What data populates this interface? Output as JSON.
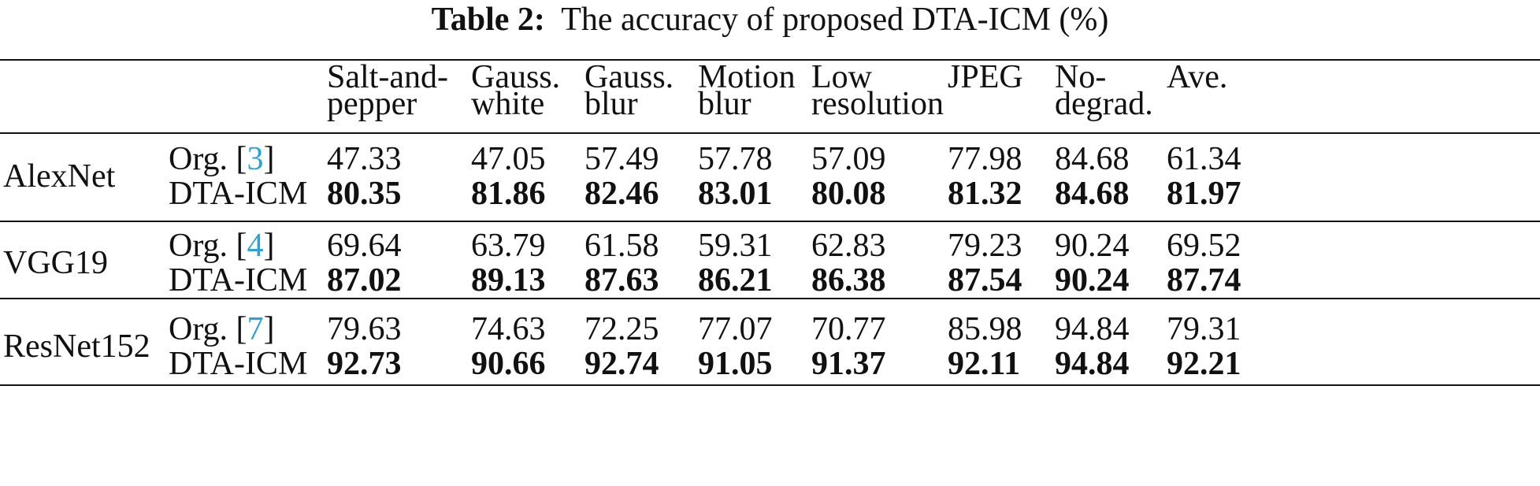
{
  "caption": {
    "label": "Table 2:",
    "text": "The accuracy of proposed DTA-ICM (%)"
  },
  "header": {
    "columns": [
      {
        "line1": "Salt-and-",
        "line2": "pepper"
      },
      {
        "line1": "Gauss.",
        "line2": "white"
      },
      {
        "line1": "Gauss.",
        "line2": "blur"
      },
      {
        "line1": "Motion",
        "line2": "blur"
      },
      {
        "line1": "Low",
        "line2": "resolution"
      },
      {
        "line1": "JPEG",
        "line2": ""
      },
      {
        "line1": "No-",
        "line2": "degrad."
      },
      {
        "line1": "Ave.",
        "line2": ""
      }
    ]
  },
  "rows": [
    {
      "model": "AlexNet",
      "org_label": "Org. [",
      "org_cite": "3",
      "org_close": "]",
      "org_values": [
        "47.33",
        "47.05",
        "57.49",
        "57.78",
        "57.09",
        "77.98",
        "84.68",
        "61.34"
      ],
      "method_label": "DTA-ICM",
      "method_values": [
        "80.35",
        "81.86",
        "82.46",
        "83.01",
        "80.08",
        "81.32",
        "84.68",
        "81.97"
      ]
    },
    {
      "model": "VGG19",
      "org_label": "Org. [",
      "org_cite": "4",
      "org_close": "]",
      "org_values": [
        "69.64",
        "63.79",
        "61.58",
        "59.31",
        "62.83",
        "79.23",
        "90.24",
        "69.52"
      ],
      "method_label": "DTA-ICM",
      "method_values": [
        "87.02",
        "89.13",
        "87.63",
        "86.21",
        "86.38",
        "87.54",
        "90.24",
        "87.74"
      ]
    },
    {
      "model": "ResNet152",
      "org_label": "Org. [",
      "org_cite": "7",
      "org_close": "]",
      "org_values": [
        "79.63",
        "74.63",
        "72.25",
        "77.07",
        "70.77",
        "85.98",
        "94.84",
        "79.31"
      ],
      "method_label": "DTA-ICM",
      "method_values": [
        "92.73",
        "90.66",
        "92.74",
        "91.05",
        "91.37",
        "92.11",
        "94.84",
        "92.21"
      ]
    }
  ]
}
